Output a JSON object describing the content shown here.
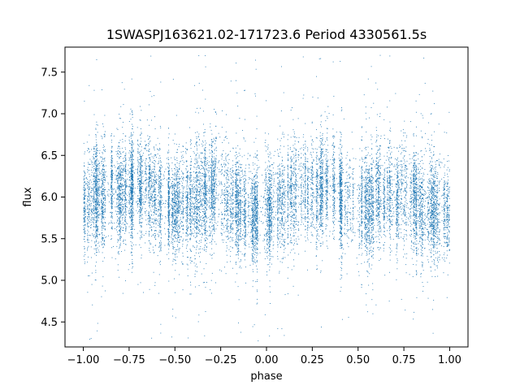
{
  "chart_data": {
    "type": "scatter",
    "title": "1SWASPJ163621.02-171723.6 Period 4330561.5s",
    "xlabel": "phase",
    "ylabel": "flux",
    "xlim": [
      -1.1,
      1.1
    ],
    "ylim": [
      4.2,
      7.8
    ],
    "xticks": [
      -1.0,
      -0.75,
      -0.5,
      -0.25,
      0.0,
      0.25,
      0.5,
      0.75,
      1.0
    ],
    "xtick_labels": [
      "−1.00",
      "−0.75",
      "−0.50",
      "−0.25",
      "0.00",
      "0.25",
      "0.50",
      "0.75",
      "1.00"
    ],
    "yticks": [
      4.5,
      5.0,
      5.5,
      6.0,
      6.5,
      7.0,
      7.5
    ],
    "ytick_labels": [
      "4.5",
      "5.0",
      "5.5",
      "6.0",
      "6.5",
      "7.0",
      "7.5"
    ],
    "grid": false,
    "marker_color": "#1f77b4",
    "phase_range": [
      -1.0,
      1.0
    ],
    "flux_median": 5.95,
    "flux_spread": 0.28,
    "light_curve_profile": [
      {
        "phase": -1.0,
        "flux": 5.95
      },
      {
        "phase": -0.85,
        "flux": 6.05
      },
      {
        "phase": -0.75,
        "flux": 6.05
      },
      {
        "phase": -0.65,
        "flux": 6.15
      },
      {
        "phase": -0.55,
        "flux": 5.9
      },
      {
        "phase": -0.45,
        "flux": 5.9
      },
      {
        "phase": -0.35,
        "flux": 6.05
      },
      {
        "phase": -0.25,
        "flux": 6.05
      },
      {
        "phase": -0.15,
        "flux": 5.85
      },
      {
        "phase": -0.05,
        "flux": 5.8
      },
      {
        "phase": 0.0,
        "flux": 5.85
      },
      {
        "phase": 0.15,
        "flux": 6.05
      },
      {
        "phase": 0.25,
        "flux": 6.05
      },
      {
        "phase": 0.35,
        "flux": 6.15
      },
      {
        "phase": 0.45,
        "flux": 5.9
      },
      {
        "phase": 0.55,
        "flux": 5.9
      },
      {
        "phase": 0.65,
        "flux": 6.05
      },
      {
        "phase": 0.75,
        "flux": 6.05
      },
      {
        "phase": 0.85,
        "flux": 5.85
      },
      {
        "phase": 0.95,
        "flux": 5.8
      },
      {
        "phase": 1.0,
        "flux": 5.85
      }
    ]
  }
}
